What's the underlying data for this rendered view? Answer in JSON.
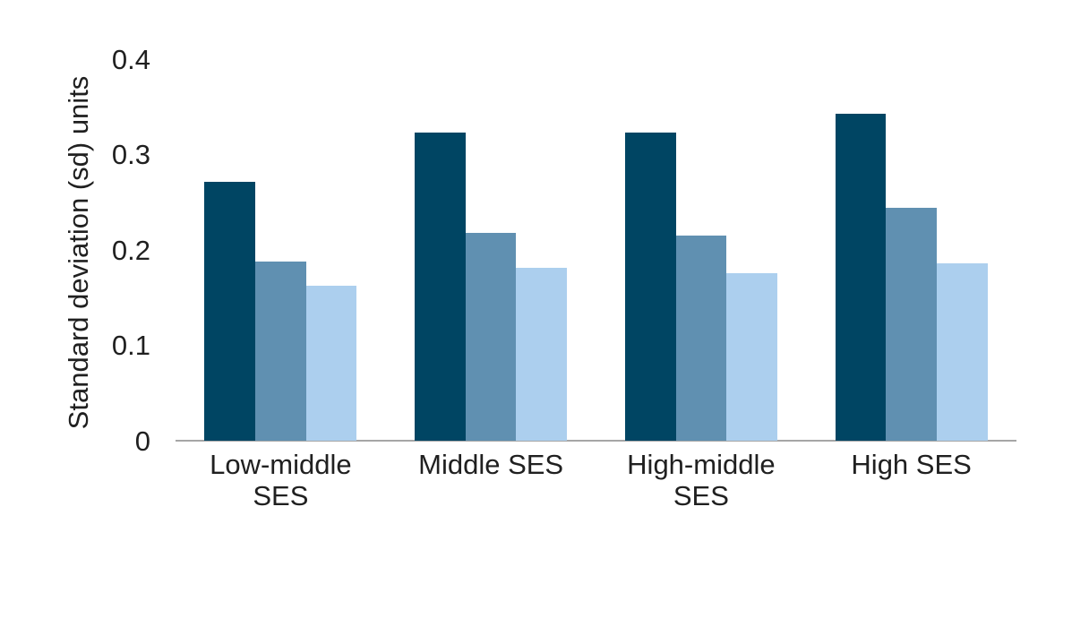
{
  "chart_data": {
    "type": "bar",
    "title": "",
    "ylabel": "Standard deviation (sd) units",
    "xlabel": "",
    "categories": [
      "Low-middle SES",
      "Middle SES",
      "High-middle SES",
      "High SES"
    ],
    "series": [
      {
        "name": "dark-blue",
        "color": "#004563",
        "values": [
          0.271,
          0.323,
          0.323,
          0.343
        ]
      },
      {
        "name": "medium-blue",
        "color": "#6090b1",
        "values": [
          0.188,
          0.218,
          0.215,
          0.244
        ]
      },
      {
        "name": "light-blue",
        "color": "#accfee",
        "values": [
          0.162,
          0.181,
          0.176,
          0.186
        ]
      }
    ],
    "yticks": [
      {
        "label": "0",
        "value": 0.0
      },
      {
        "label": "0.1",
        "value": 0.1
      },
      {
        "label": "0.2",
        "value": 0.2
      },
      {
        "label": "0.3",
        "value": 0.3
      },
      {
        "label": "0.4",
        "value": 0.4
      }
    ],
    "ylim": [
      0,
      0.4
    ],
    "grid": false,
    "legend": "none",
    "axis_line_color": "#a6a6a6",
    "text_color": "#202020",
    "background_color": "#ffffff"
  }
}
